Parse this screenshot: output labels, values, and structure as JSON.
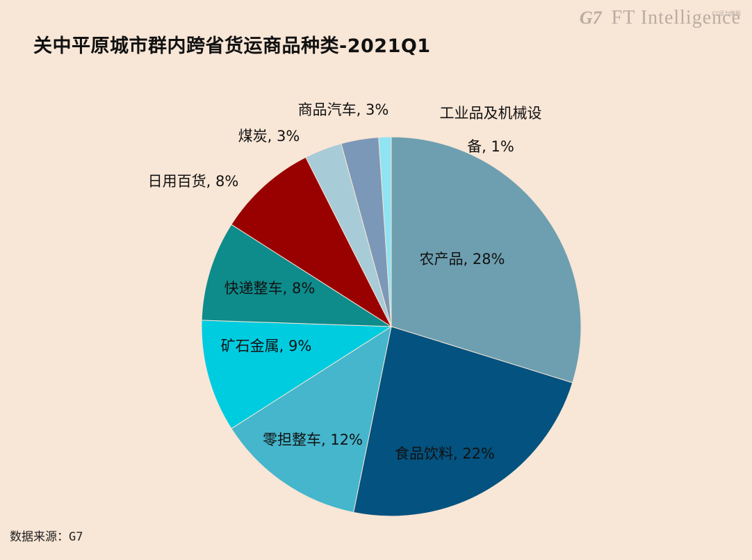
{
  "brand": {
    "logo_g7": "G7",
    "logo_ft": "FT Intelligence",
    "logo_small": "FT运力情报"
  },
  "chart_data": {
    "type": "pie",
    "title": "关中平原城市群内跨省货运商品种类-2021Q1",
    "source": "数据来源：G7",
    "slices": [
      {
        "label": "农产品",
        "value": 28,
        "display": "农产品, 28%",
        "color": "#6d9fb0"
      },
      {
        "label": "食品饮料",
        "value": 22,
        "display": "食品饮料, 22%",
        "color": "#03527f"
      },
      {
        "label": "零担整车",
        "value": 12,
        "display": "零担整车, 12%",
        "color": "#45b6cc"
      },
      {
        "label": "矿石金属",
        "value": 9,
        "display": "矿石金属, 9%",
        "color": "#00cce0"
      },
      {
        "label": "快递整车",
        "value": 8,
        "display": "快递整车, 8%",
        "color": "#0e8b8b"
      },
      {
        "label": "日用百货",
        "value": 8,
        "display": "日用百货, 8%",
        "color": "#990000"
      },
      {
        "label": "煤炭",
        "value": 3,
        "display": "煤炭, 3%",
        "color": "#a8cbd8"
      },
      {
        "label": "商品汽车",
        "value": 3,
        "display": "商品汽车, 3%",
        "color": "#7c98b8"
      },
      {
        "label": "工业品及机械设备",
        "value": 1,
        "display_lines": [
          "工业品及机械设",
          "备, 1%"
        ],
        "color": "#8fe3f2"
      }
    ]
  }
}
